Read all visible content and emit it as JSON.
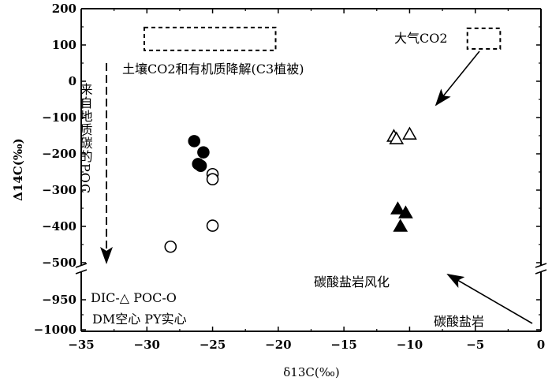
{
  "chart_data": {
    "type": "scatter",
    "xlabel": "δ13C(‰)",
    "ylabel": "Δ14C(‰)",
    "xlim": [
      -35,
      0
    ],
    "ylim_upper": [
      -500,
      200
    ],
    "ylim_lower": [
      -1000,
      -950
    ],
    "y_axis_break": true,
    "x_ticks": [
      "-35",
      "-30",
      "-25",
      "-20",
      "-15",
      "-10",
      "-5",
      "0"
    ],
    "y_ticks_upper": [
      "200",
      "100",
      "0",
      "-100",
      "-200",
      "-300",
      "-400",
      "-500"
    ],
    "y_ticks_lower": [
      "-950",
      "-1000"
    ],
    "grid": false,
    "series": [
      {
        "marker": "filled-circle",
        "points": [
          [
            -26.4,
            -165
          ],
          [
            -25.7,
            -196
          ],
          [
            -26.1,
            -228
          ],
          [
            -25.9,
            -233
          ]
        ]
      },
      {
        "marker": "open-circle",
        "points": [
          [
            -25.0,
            -256
          ],
          [
            -25.0,
            -270
          ],
          [
            -25.0,
            -398
          ],
          [
            -28.2,
            -456
          ]
        ]
      },
      {
        "marker": "open-triangle",
        "points": [
          [
            -11.2,
            -152
          ],
          [
            -11.0,
            -159
          ],
          [
            -10.0,
            -146
          ]
        ]
      },
      {
        "marker": "filled-triangle",
        "points": [
          [
            -10.9,
            -352
          ],
          [
            -10.3,
            -363
          ],
          [
            -10.7,
            -400
          ]
        ]
      }
    ],
    "regions": [
      {
        "label": "土壤CO2和有机质降解(C3植被)",
        "x": [
          -30.2,
          -20.2
        ],
        "y": [
          85,
          148
        ]
      },
      {
        "label": "大气CO2",
        "x": [
          -5.6,
          -3.1
        ],
        "y": [
          89,
          146
        ]
      },
      {
        "label": "碳酸盐岩风化",
        "x": [
          -15.7,
          -10.8
        ],
        "y": [
          -504,
          -439
        ]
      }
    ],
    "annotations": {
      "geologic_poc": "来自地质碳的POC",
      "carbonate_rock": "碳酸盐岩",
      "legend_line1": "DIC-△ POC-O",
      "legend_line2": "DM空心 PY实心"
    },
    "colors": {
      "ink": "#000000",
      "background": "#ffffff"
    }
  }
}
